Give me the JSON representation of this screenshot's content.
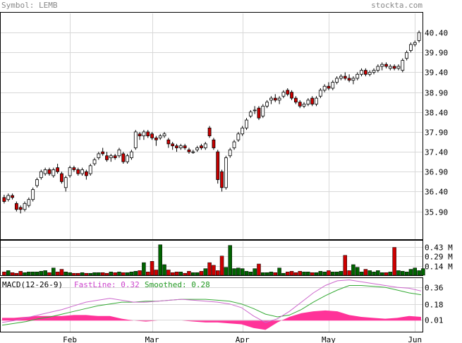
{
  "header": {
    "symbol_text": "Symbol: LEMB",
    "site_text": "stockta.com"
  },
  "colors": {
    "up_candle": "#ffffff",
    "down_candle": "#cc0000",
    "volume_up": "#006400",
    "volume_down": "#cc0000",
    "fastline": "#cc66cc",
    "smoothed": "#33aa33",
    "histogram": "#ff3399",
    "grid": "#d8d8d8"
  },
  "macd": {
    "title": "MACD(12-26-9)",
    "fast_label": "FastLine: 0.32",
    "smoothed_label": "Smoothed: 0.28",
    "y_ticks": [
      "0.36",
      "0.18",
      "0.01"
    ],
    "tick_values": [
      0.36,
      0.18,
      0.01
    ],
    "fastline": [
      -0.02,
      0.0,
      0.03,
      0.06,
      0.09,
      0.12,
      0.16,
      0.2,
      0.22,
      0.24,
      0.22,
      0.2,
      0.2,
      0.21,
      0.22,
      0.23,
      0.22,
      0.21,
      0.2,
      0.18,
      0.14,
      0.05,
      -0.02,
      0.02,
      0.1,
      0.2,
      0.3,
      0.38,
      0.43,
      0.44,
      0.42,
      0.4,
      0.38,
      0.36,
      0.35,
      0.32
    ],
    "smoothed": [
      -0.05,
      -0.03,
      -0.01,
      0.02,
      0.04,
      0.07,
      0.1,
      0.13,
      0.16,
      0.18,
      0.2,
      0.2,
      0.21,
      0.21,
      0.22,
      0.23,
      0.23,
      0.23,
      0.22,
      0.21,
      0.18,
      0.13,
      0.07,
      0.04,
      0.06,
      0.12,
      0.2,
      0.27,
      0.33,
      0.38,
      0.38,
      0.37,
      0.36,
      0.33,
      0.3,
      0.28
    ],
    "histogram": [
      0.03,
      0.03,
      0.04,
      0.05,
      0.05,
      0.05,
      0.06,
      0.06,
      0.05,
      0.05,
      0.02,
      0.0,
      -0.01,
      0.0,
      0.0,
      0.0,
      -0.01,
      -0.02,
      -0.02,
      -0.03,
      -0.04,
      -0.08,
      -0.1,
      -0.02,
      0.04,
      0.08,
      0.1,
      0.11,
      0.1,
      0.06,
      0.04,
      0.03,
      0.02,
      0.03,
      0.05,
      0.04
    ]
  },
  "volume": {
    "y_ticks": [
      "0.43 M",
      "0.29 M",
      "0.14 M"
    ],
    "tick_values": [
      0.43,
      0.29,
      0.14
    ]
  },
  "chart_data": {
    "type": "candlestick",
    "x_labels": [
      "Feb",
      "Mar",
      "Apr",
      "May",
      "Jun"
    ],
    "x_label_index": [
      16,
      36,
      58,
      79,
      100
    ],
    "y_ticks": [
      "40.40",
      "39.90",
      "39.40",
      "38.90",
      "38.40",
      "37.90",
      "37.40",
      "36.90",
      "36.40",
      "35.90"
    ],
    "tick_values": [
      40.4,
      39.9,
      39.4,
      38.9,
      38.4,
      37.9,
      37.4,
      36.9,
      36.4,
      35.9
    ],
    "ylim": [
      35.2,
      40.9
    ],
    "candles": [
      [
        36.25,
        36.32,
        36.1,
        36.15
      ],
      [
        36.2,
        36.35,
        36.15,
        36.3
      ],
      [
        36.3,
        36.35,
        36.2,
        36.25
      ],
      [
        36.1,
        36.15,
        35.9,
        35.95
      ],
      [
        36.0,
        36.05,
        35.85,
        35.95
      ],
      [
        35.95,
        36.15,
        35.9,
        36.1
      ],
      [
        36.05,
        36.25,
        36.0,
        36.2
      ],
      [
        36.2,
        36.5,
        36.15,
        36.45
      ],
      [
        36.55,
        36.75,
        36.5,
        36.7
      ],
      [
        36.75,
        36.95,
        36.7,
        36.9
      ],
      [
        36.85,
        37.0,
        36.8,
        36.95
      ],
      [
        36.95,
        37.0,
        36.8,
        36.85
      ],
      [
        36.8,
        37.0,
        36.75,
        36.95
      ],
      [
        37.0,
        37.1,
        36.85,
        36.9
      ],
      [
        36.85,
        36.9,
        36.6,
        36.65
      ],
      [
        36.5,
        36.8,
        36.4,
        36.75
      ],
      [
        36.8,
        37.05,
        36.75,
        37.0
      ],
      [
        37.0,
        37.05,
        36.9,
        36.95
      ],
      [
        36.95,
        37.0,
        36.8,
        36.85
      ],
      [
        36.85,
        37.0,
        36.8,
        36.95
      ],
      [
        36.9,
        36.95,
        36.7,
        36.8
      ],
      [
        36.85,
        37.1,
        36.8,
        37.05
      ],
      [
        37.1,
        37.25,
        37.05,
        37.2
      ],
      [
        37.25,
        37.4,
        37.2,
        37.35
      ],
      [
        37.4,
        37.5,
        37.3,
        37.35
      ],
      [
        37.3,
        37.4,
        37.15,
        37.2
      ],
      [
        37.25,
        37.35,
        37.15,
        37.3
      ],
      [
        37.3,
        37.35,
        37.2,
        37.25
      ],
      [
        37.3,
        37.5,
        37.25,
        37.45
      ],
      [
        37.35,
        37.4,
        37.1,
        37.15
      ],
      [
        37.15,
        37.35,
        37.1,
        37.3
      ],
      [
        37.25,
        37.45,
        37.2,
        37.4
      ],
      [
        37.5,
        37.95,
        37.45,
        37.9
      ],
      [
        37.85,
        37.9,
        37.7,
        37.8
      ],
      [
        37.8,
        37.95,
        37.7,
        37.9
      ],
      [
        37.9,
        37.95,
        37.75,
        37.8
      ],
      [
        37.85,
        37.9,
        37.7,
        37.75
      ],
      [
        37.75,
        37.8,
        37.55,
        37.7
      ],
      [
        37.75,
        37.85,
        37.7,
        37.8
      ],
      [
        37.8,
        37.9,
        37.75,
        37.85
      ],
      [
        37.7,
        37.75,
        37.5,
        37.6
      ],
      [
        37.6,
        37.65,
        37.45,
        37.55
      ],
      [
        37.55,
        37.6,
        37.4,
        37.5
      ],
      [
        37.5,
        37.6,
        37.45,
        37.55
      ],
      [
        37.55,
        37.6,
        37.45,
        37.5
      ],
      [
        37.45,
        37.5,
        37.35,
        37.4
      ],
      [
        37.4,
        37.45,
        37.35,
        37.4
      ],
      [
        37.45,
        37.55,
        37.4,
        37.5
      ],
      [
        37.55,
        37.6,
        37.45,
        37.5
      ],
      [
        37.5,
        37.65,
        37.45,
        37.6
      ],
      [
        38.0,
        38.05,
        37.75,
        37.8
      ],
      [
        37.7,
        37.75,
        37.45,
        37.5
      ],
      [
        37.4,
        37.45,
        36.6,
        36.7
      ],
      [
        36.9,
        36.95,
        36.4,
        36.5
      ],
      [
        36.5,
        37.3,
        36.45,
        37.25
      ],
      [
        37.3,
        37.5,
        37.25,
        37.45
      ],
      [
        37.5,
        37.7,
        37.45,
        37.65
      ],
      [
        37.7,
        37.9,
        37.65,
        37.85
      ],
      [
        37.85,
        38.05,
        37.8,
        38.0
      ],
      [
        38.0,
        38.25,
        37.95,
        38.2
      ],
      [
        38.3,
        38.45,
        38.25,
        38.4
      ],
      [
        38.45,
        38.55,
        38.35,
        38.45
      ],
      [
        38.5,
        38.55,
        38.2,
        38.25
      ],
      [
        38.3,
        38.6,
        38.25,
        38.55
      ],
      [
        38.55,
        38.7,
        38.5,
        38.65
      ],
      [
        38.7,
        38.8,
        38.6,
        38.75
      ],
      [
        38.75,
        38.85,
        38.65,
        38.7
      ],
      [
        38.7,
        38.8,
        38.6,
        38.75
      ],
      [
        38.8,
        38.95,
        38.75,
        38.9
      ],
      [
        38.95,
        39.0,
        38.8,
        38.85
      ],
      [
        38.9,
        38.95,
        38.7,
        38.75
      ],
      [
        38.75,
        38.8,
        38.6,
        38.65
      ],
      [
        38.65,
        38.7,
        38.5,
        38.55
      ],
      [
        38.55,
        38.65,
        38.5,
        38.6
      ],
      [
        38.6,
        38.75,
        38.55,
        38.7
      ],
      [
        38.75,
        38.8,
        38.55,
        38.6
      ],
      [
        38.6,
        38.8,
        38.55,
        38.75
      ],
      [
        38.8,
        39.0,
        38.75,
        38.95
      ],
      [
        38.95,
        39.1,
        38.9,
        39.05
      ],
      [
        39.05,
        39.15,
        38.95,
        39.0
      ],
      [
        39.0,
        39.2,
        38.95,
        39.15
      ],
      [
        39.15,
        39.3,
        39.1,
        39.25
      ],
      [
        39.25,
        39.35,
        39.2,
        39.3
      ],
      [
        39.3,
        39.4,
        39.2,
        39.25
      ],
      [
        39.25,
        39.35,
        39.15,
        39.2
      ],
      [
        39.2,
        39.3,
        39.1,
        39.25
      ],
      [
        39.25,
        39.4,
        39.2,
        39.35
      ],
      [
        39.35,
        39.5,
        39.3,
        39.45
      ],
      [
        39.45,
        39.5,
        39.3,
        39.35
      ],
      [
        39.35,
        39.45,
        39.3,
        39.4
      ],
      [
        39.4,
        39.5,
        39.35,
        39.45
      ],
      [
        39.45,
        39.6,
        39.4,
        39.55
      ],
      [
        39.55,
        39.65,
        39.45,
        39.6
      ],
      [
        39.6,
        39.65,
        39.5,
        39.55
      ],
      [
        39.5,
        39.6,
        39.45,
        39.55
      ],
      [
        39.55,
        39.6,
        39.45,
        39.5
      ],
      [
        39.5,
        39.6,
        39.45,
        39.55
      ],
      [
        39.45,
        39.75,
        39.4,
        39.7
      ],
      [
        39.75,
        39.95,
        39.7,
        39.9
      ],
      [
        39.95,
        40.15,
        39.9,
        40.1
      ],
      [
        40.1,
        40.2,
        40.05,
        40.15
      ],
      [
        40.2,
        40.45,
        40.15,
        40.4
      ]
    ],
    "volume_values": [
      0.05,
      0.07,
      0.04,
      0.03,
      0.06,
      0.04,
      0.05,
      0.05,
      0.05,
      0.06,
      0.07,
      0.04,
      0.11,
      0.05,
      0.09,
      0.05,
      0.04,
      0.03,
      0.03,
      0.04,
      0.03,
      0.03,
      0.04,
      0.04,
      0.04,
      0.03,
      0.05,
      0.04,
      0.05,
      0.04,
      0.04,
      0.05,
      0.06,
      0.07,
      0.19,
      0.05,
      0.21,
      0.08,
      0.46,
      0.16,
      0.08,
      0.04,
      0.05,
      0.05,
      0.03,
      0.06,
      0.04,
      0.04,
      0.06,
      0.1,
      0.19,
      0.15,
      0.07,
      0.29,
      0.12,
      0.45,
      0.1,
      0.11,
      0.1,
      0.06,
      0.05,
      0.1,
      0.17,
      0.04,
      0.04,
      0.05,
      0.04,
      0.11,
      0.03,
      0.05,
      0.06,
      0.04,
      0.06,
      0.05,
      0.05,
      0.04,
      0.04,
      0.06,
      0.05,
      0.07,
      0.05,
      0.05,
      0.06,
      0.3,
      0.07,
      0.16,
      0.12,
      0.05,
      0.09,
      0.07,
      0.05,
      0.07,
      0.04,
      0.04,
      0.05,
      0.42,
      0.07,
      0.06,
      0.05,
      0.09,
      0.11,
      0.07,
      0.1
    ]
  }
}
